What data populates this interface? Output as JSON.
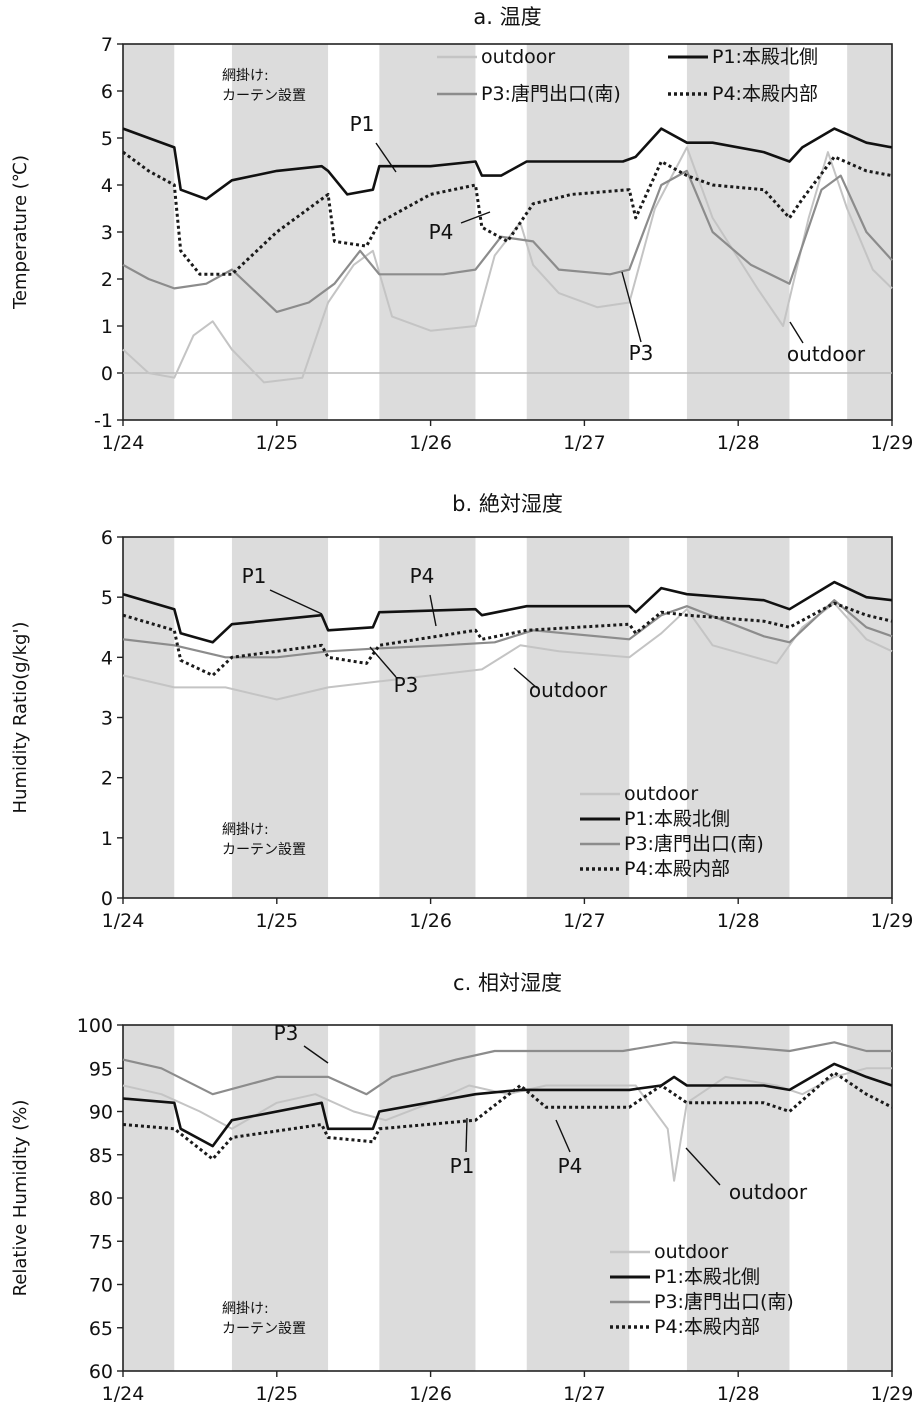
{
  "figure": {
    "note_line1": "網掛け:",
    "note_line2": "カーテン設置"
  },
  "colors": {
    "outdoor": "#c4c4c4",
    "P1": "#111111",
    "P3": "#8c8c8c",
    "P4": "#1a1a1a",
    "shade": "#dcdcdc"
  },
  "chart_data": [
    {
      "type": "line",
      "title": "a. 温度",
      "ylabel": "Temperature (℃)",
      "ylim": [
        -1,
        7
      ],
      "yticks": [
        "-1",
        "0",
        "1",
        "2",
        "3",
        "4",
        "5",
        "6",
        "7"
      ],
      "xlim": [
        "1/24",
        "1/29"
      ],
      "xticks": [
        "1/24",
        "1/25",
        "1/26",
        "1/27",
        "1/28",
        "1/29"
      ],
      "zero_line": true,
      "shaded_intervals": [
        [
          "1/24 00:00",
          "1/24 08:00"
        ],
        [
          "1/24 17:00",
          "1/25 08:00"
        ],
        [
          "1/25 16:00",
          "1/26 07:00"
        ],
        [
          "1/26 15:00",
          "1/27 07:00"
        ],
        [
          "1/27 16:00",
          "1/28 08:00"
        ],
        [
          "1/28 17:00",
          "1/29 00:00"
        ]
      ],
      "legend": {
        "placement": "top-right",
        "entries": [
          "outdoor",
          "P1:本殿北側",
          "P3:唐門出口(南)",
          "P4:本殿内部"
        ]
      },
      "annotations": [
        "P1",
        "P4",
        "P3",
        "outdoor"
      ],
      "series": [
        {
          "name": "outdoor",
          "x": [
            "1/24 00:00",
            "1/24 04:00",
            "1/24 08:00",
            "1/24 11:00",
            "1/24 14:00",
            "1/24 17:00",
            "1/24 22:00",
            "1/25 04:00",
            "1/25 08:00",
            "1/25 12:00",
            "1/25 15:00",
            "1/25 18:00",
            "1/26 00:00",
            "1/26 07:00",
            "1/26 10:00",
            "1/26 14:00",
            "1/26 16:00",
            "1/26 20:00",
            "1/27 02:00",
            "1/27 07:00",
            "1/27 11:00",
            "1/27 16:00",
            "1/27 20:00",
            "1/28 03:00",
            "1/28 07:00",
            "1/28 11:00",
            "1/28 14:00",
            "1/28 17:00",
            "1/28 21:00",
            "1/29 00:00"
          ],
          "values": [
            0.5,
            0,
            -0.1,
            0.8,
            1.1,
            0.5,
            -0.2,
            -0.1,
            1.5,
            2.3,
            2.6,
            1.2,
            0.9,
            1.0,
            2.5,
            3.2,
            2.3,
            1.7,
            1.4,
            1.5,
            3.5,
            4.8,
            3.3,
            1.8,
            1.0,
            3.3,
            4.7,
            3.5,
            2.2,
            1.8
          ]
        },
        {
          "name": "P1:本殿北側",
          "x": [
            "1/24 00:00",
            "1/24 04:00",
            "1/24 08:00",
            "1/24 09:00",
            "1/24 13:00",
            "1/24 17:00",
            "1/25 00:00",
            "1/25 07:00",
            "1/25 08:00",
            "1/25 11:00",
            "1/25 15:00",
            "1/25 16:00",
            "1/26 00:00",
            "1/26 07:00",
            "1/26 08:00",
            "1/26 11:00",
            "1/26 15:00",
            "1/26 22:00",
            "1/27 06:00",
            "1/27 08:00",
            "1/27 12:00",
            "1/27 16:00",
            "1/27 20:00",
            "1/28 04:00",
            "1/28 08:00",
            "1/28 10:00",
            "1/28 15:00",
            "1/28 20:00",
            "1/29 00:00"
          ],
          "values": [
            5.2,
            5.0,
            4.8,
            3.9,
            3.7,
            4.1,
            4.3,
            4.4,
            4.3,
            3.8,
            3.9,
            4.4,
            4.4,
            4.5,
            4.2,
            4.2,
            4.5,
            4.5,
            4.5,
            4.6,
            5.2,
            4.9,
            4.9,
            4.7,
            4.5,
            4.8,
            5.2,
            4.9,
            4.8
          ]
        },
        {
          "name": "P3:唐門出口(南)",
          "x": [
            "1/24 00:00",
            "1/24 04:00",
            "1/24 08:00",
            "1/24 13:00",
            "1/24 17:00",
            "1/25 00:00",
            "1/25 05:00",
            "1/25 09:00",
            "1/25 13:00",
            "1/25 16:00",
            "1/26 02:00",
            "1/26 07:00",
            "1/26 11:00",
            "1/26 16:00",
            "1/26 20:00",
            "1/27 04:00",
            "1/27 07:00",
            "1/27 12:00",
            "1/27 16:00",
            "1/27 20:00",
            "1/28 02:00",
            "1/28 08:00",
            "1/28 13:00",
            "1/28 16:00",
            "1/28 20:00",
            "1/29 00:00"
          ],
          "values": [
            2.3,
            2.0,
            1.8,
            1.9,
            2.2,
            1.3,
            1.5,
            1.9,
            2.6,
            2.1,
            2.1,
            2.2,
            2.9,
            2.8,
            2.2,
            2.1,
            2.2,
            4.0,
            4.3,
            3.0,
            2.3,
            1.9,
            3.9,
            4.2,
            3.0,
            2.4
          ]
        },
        {
          "name": "P4:本殿内部",
          "x": [
            "1/24 00:00",
            "1/24 04:00",
            "1/24 08:00",
            "1/24 09:00",
            "1/24 12:00",
            "1/24 17:00",
            "1/25 00:00",
            "1/25 05:00",
            "1/25 08:00",
            "1/25 09:00",
            "1/25 14:00",
            "1/25 16:00",
            "1/26 00:00",
            "1/26 07:00",
            "1/26 08:00",
            "1/26 12:00",
            "1/26 16:00",
            "1/26 22:00",
            "1/27 07:00",
            "1/27 08:00",
            "1/27 12:00",
            "1/27 16:00",
            "1/27 20:00",
            "1/28 04:00",
            "1/28 08:00",
            "1/28 10:00",
            "1/28 15:00",
            "1/28 20:00",
            "1/29 00:00"
          ],
          "values": [
            4.7,
            4.3,
            4.0,
            2.6,
            2.1,
            2.1,
            3.0,
            3.5,
            3.8,
            2.8,
            2.7,
            3.2,
            3.8,
            4.0,
            3.1,
            2.8,
            3.6,
            3.8,
            3.9,
            3.3,
            4.5,
            4.2,
            4.0,
            3.9,
            3.3,
            3.7,
            4.6,
            4.3,
            4.2
          ]
        }
      ]
    },
    {
      "type": "line",
      "title": "b. 絶対湿度",
      "ylabel": "Humidity Ratio(g/kg')",
      "ylim": [
        0,
        6
      ],
      "yticks": [
        "0",
        "1",
        "2",
        "3",
        "4",
        "5",
        "6"
      ],
      "xlim": [
        "1/24",
        "1/29"
      ],
      "xticks": [
        "1/24",
        "1/25",
        "1/26",
        "1/27",
        "1/28",
        "1/29"
      ],
      "zero_line": false,
      "shaded_intervals": [
        [
          "1/24 00:00",
          "1/24 08:00"
        ],
        [
          "1/24 17:00",
          "1/25 08:00"
        ],
        [
          "1/25 16:00",
          "1/26 07:00"
        ],
        [
          "1/26 15:00",
          "1/27 07:00"
        ],
        [
          "1/27 16:00",
          "1/28 08:00"
        ],
        [
          "1/28 17:00",
          "1/29 00:00"
        ]
      ],
      "legend": {
        "placement": "bottom-right",
        "entries": [
          "outdoor",
          "P1:本殿北側",
          "P3:唐門出口(南)",
          "P4:本殿内部"
        ]
      },
      "annotations": [
        "P1",
        "P4",
        "P3",
        "outdoor"
      ],
      "series": [
        {
          "name": "outdoor",
          "x": [
            "1/24 00:00",
            "1/24 08:00",
            "1/24 16:00",
            "1/25 00:00",
            "1/25 08:00",
            "1/25 16:00",
            "1/26 00:00",
            "1/26 08:00",
            "1/26 14:00",
            "1/26 20:00",
            "1/27 07:00",
            "1/27 12:00",
            "1/27 16:00",
            "1/27 20:00",
            "1/28 06:00",
            "1/28 10:00",
            "1/28 15:00",
            "1/28 20:00",
            "1/29 00:00"
          ],
          "values": [
            3.7,
            3.5,
            3.5,
            3.3,
            3.5,
            3.6,
            3.7,
            3.8,
            4.2,
            4.1,
            4.0,
            4.4,
            4.8,
            4.2,
            3.9,
            4.5,
            4.9,
            4.3,
            4.1
          ]
        },
        {
          "name": "P1:本殿北側",
          "x": [
            "1/24 00:00",
            "1/24 08:00",
            "1/24 09:00",
            "1/24 14:00",
            "1/24 17:00",
            "1/25 07:00",
            "1/25 08:00",
            "1/25 15:00",
            "1/25 16:00",
            "1/26 07:00",
            "1/26 08:00",
            "1/26 15:00",
            "1/27 07:00",
            "1/27 08:00",
            "1/27 12:00",
            "1/27 16:00",
            "1/28 04:00",
            "1/28 08:00",
            "1/28 15:00",
            "1/28 20:00",
            "1/29 00:00"
          ],
          "values": [
            5.05,
            4.8,
            4.4,
            4.25,
            4.55,
            4.7,
            4.45,
            4.5,
            4.75,
            4.8,
            4.7,
            4.85,
            4.85,
            4.75,
            5.15,
            5.05,
            4.95,
            4.8,
            5.25,
            5.0,
            4.95
          ]
        },
        {
          "name": "P3:唐門出口(南)",
          "x": [
            "1/24 00:00",
            "1/24 08:00",
            "1/24 16:00",
            "1/25 00:00",
            "1/25 08:00",
            "1/25 16:00",
            "1/26 02:00",
            "1/26 10:00",
            "1/26 16:00",
            "1/27 07:00",
            "1/27 12:00",
            "1/27 16:00",
            "1/28 04:00",
            "1/28 08:00",
            "1/28 15:00",
            "1/28 20:00",
            "1/29 00:00"
          ],
          "values": [
            4.3,
            4.2,
            4.0,
            4.0,
            4.1,
            4.15,
            4.2,
            4.25,
            4.45,
            4.3,
            4.7,
            4.85,
            4.35,
            4.25,
            4.95,
            4.5,
            4.35
          ]
        },
        {
          "name": "P4:本殿内部",
          "x": [
            "1/24 00:00",
            "1/24 08:00",
            "1/24 09:00",
            "1/24 14:00",
            "1/24 17:00",
            "1/25 07:00",
            "1/25 08:00",
            "1/25 14:00",
            "1/25 16:00",
            "1/26 07:00",
            "1/26 08:00",
            "1/26 15:00",
            "1/27 07:00",
            "1/27 08:00",
            "1/27 12:00",
            "1/27 16:00",
            "1/28 04:00",
            "1/28 08:00",
            "1/28 15:00",
            "1/28 20:00",
            "1/29 00:00"
          ],
          "values": [
            4.7,
            4.45,
            3.95,
            3.7,
            4.0,
            4.2,
            4.0,
            3.9,
            4.2,
            4.45,
            4.3,
            4.45,
            4.55,
            4.4,
            4.75,
            4.7,
            4.6,
            4.5,
            4.9,
            4.7,
            4.6
          ]
        }
      ]
    },
    {
      "type": "line",
      "title": "c. 相対湿度",
      "ylabel": "Relative Humidity (%)",
      "ylim": [
        60,
        100
      ],
      "yticks": [
        "60",
        "65",
        "70",
        "75",
        "80",
        "85",
        "90",
        "95",
        "100"
      ],
      "xlim": [
        "1/24",
        "1/29"
      ],
      "xticks": [
        "1/24",
        "1/25",
        "1/26",
        "1/27",
        "1/28",
        "1/29"
      ],
      "zero_line": false,
      "shaded_intervals": [
        [
          "1/24 00:00",
          "1/24 08:00"
        ],
        [
          "1/24 17:00",
          "1/25 08:00"
        ],
        [
          "1/25 16:00",
          "1/26 07:00"
        ],
        [
          "1/26 15:00",
          "1/27 07:00"
        ],
        [
          "1/27 16:00",
          "1/28 08:00"
        ],
        [
          "1/28 17:00",
          "1/29 00:00"
        ]
      ],
      "legend": {
        "placement": "bottom-right",
        "entries": [
          "outdoor",
          "P1:本殿北側",
          "P3:唐門出口(南)",
          "P4:本殿内部"
        ]
      },
      "annotations": [
        "P3",
        "P1",
        "P4",
        "outdoor"
      ],
      "series": [
        {
          "name": "outdoor",
          "x": [
            "1/24 00:00",
            "1/24 06:00",
            "1/24 12:00",
            "1/24 17:00",
            "1/25 00:00",
            "1/25 06:00",
            "1/25 12:00",
            "1/25 17:00",
            "1/26 00:00",
            "1/26 06:00",
            "1/26 12:00",
            "1/26 18:00",
            "1/27 00:00",
            "1/27 08:00",
            "1/27 13:00",
            "1/27 14:00",
            "1/27 16:00",
            "1/27 22:00",
            "1/28 06:00",
            "1/28 10:00",
            "1/28 15:00",
            "1/28 20:00",
            "1/29 00:00"
          ],
          "values": [
            93,
            92,
            90,
            88,
            91,
            92,
            90,
            89,
            91,
            93,
            92,
            93,
            93,
            93,
            88,
            82,
            91,
            94,
            93,
            92,
            94,
            95,
            95
          ]
        },
        {
          "name": "P1:本殿北側",
          "x": [
            "1/24 00:00",
            "1/24 08:00",
            "1/24 09:00",
            "1/24 14:00",
            "1/24 17:00",
            "1/25 07:00",
            "1/25 08:00",
            "1/25 15:00",
            "1/25 16:00",
            "1/26 07:00",
            "1/26 14:00",
            "1/27 07:00",
            "1/27 12:00",
            "1/27 14:00",
            "1/27 16:00",
            "1/28 04:00",
            "1/28 08:00",
            "1/28 15:00",
            "1/28 20:00",
            "1/29 00:00"
          ],
          "values": [
            91.5,
            91,
            88,
            86,
            89,
            91,
            88,
            88,
            90,
            92,
            92.5,
            92.5,
            93,
            94,
            93,
            93,
            92.5,
            95.5,
            94,
            93
          ]
        },
        {
          "name": "P3:唐門出口(南)",
          "x": [
            "1/24 00:00",
            "1/24 06:00",
            "1/24 14:00",
            "1/25 00:00",
            "1/25 08:00",
            "1/25 14:00",
            "1/25 18:00",
            "1/26 04:00",
            "1/26 10:00",
            "1/26 18:00",
            "1/27 06:00",
            "1/27 14:00",
            "1/28 00:00",
            "1/28 08:00",
            "1/28 15:00",
            "1/28 20:00",
            "1/29 00:00"
          ],
          "values": [
            96,
            95,
            92,
            94,
            94,
            92,
            94,
            96,
            97,
            97,
            97,
            98,
            97.5,
            97,
            98,
            97,
            97
          ]
        },
        {
          "name": "P4:本殿内部",
          "x": [
            "1/24 00:00",
            "1/24 08:00",
            "1/24 14:00",
            "1/24 17:00",
            "1/25 07:00",
            "1/25 08:00",
            "1/25 15:00",
            "1/25 16:00",
            "1/26 07:00",
            "1/26 14:00",
            "1/26 18:00",
            "1/27 07:00",
            "1/27 12:00",
            "1/27 16:00",
            "1/28 04:00",
            "1/28 08:00",
            "1/28 15:00",
            "1/28 20:00",
            "1/29 00:00"
          ],
          "values": [
            88.5,
            88,
            84.5,
            87,
            88.5,
            87,
            86.5,
            88,
            89,
            93,
            90.5,
            90.5,
            93,
            91,
            91,
            90,
            94.5,
            92,
            90.5
          ]
        }
      ]
    }
  ]
}
